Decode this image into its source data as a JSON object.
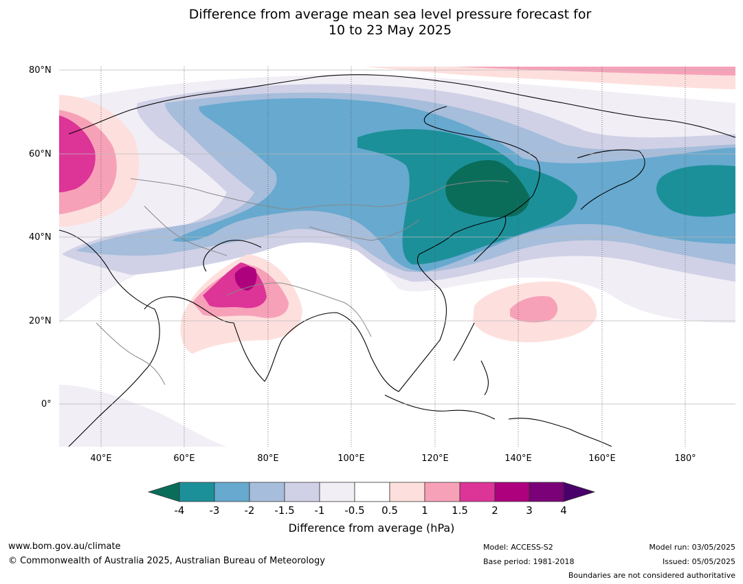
{
  "title_line1": "Difference from average mean sea level pressure forecast for",
  "title_line2": "10 to 23 May 2025",
  "lat_labels": [
    "80°N",
    "60°N",
    "40°N",
    "20°N",
    "0°"
  ],
  "lon_labels": [
    "40°E",
    "60°E",
    "80°E",
    "100°E",
    "120°E",
    "140°E",
    "160°E",
    "180°"
  ],
  "colorbar": {
    "ticks": [
      "-4",
      "-3",
      "-2",
      "-1.5",
      "-1",
      "-0.5",
      "0.5",
      "1",
      "1.5",
      "2",
      "3",
      "4"
    ],
    "colors": [
      "#0a6d5a",
      "#1c9099",
      "#67a9cf",
      "#a6bddb",
      "#d0d1e6",
      "#f1eef6",
      "#ffffff",
      "#fde0dd",
      "#f7a1b9",
      "#dd3497",
      "#ae017e",
      "#7a0177",
      "#49006a"
    ],
    "label": "Difference from average (hPa)"
  },
  "footer": {
    "url": "www.bom.gov.au/climate",
    "copyright": "© Commonwealth of Australia 2025, Australian Bureau of Meteorology",
    "model": "Model: ACCESS-S2",
    "base_period": "Base period: 1981-2018",
    "model_run": "Model run: 03/05/2025",
    "issued": "Issued: 05/05/2025",
    "disclaimer": "Boundaries are not considered authoritative"
  }
}
